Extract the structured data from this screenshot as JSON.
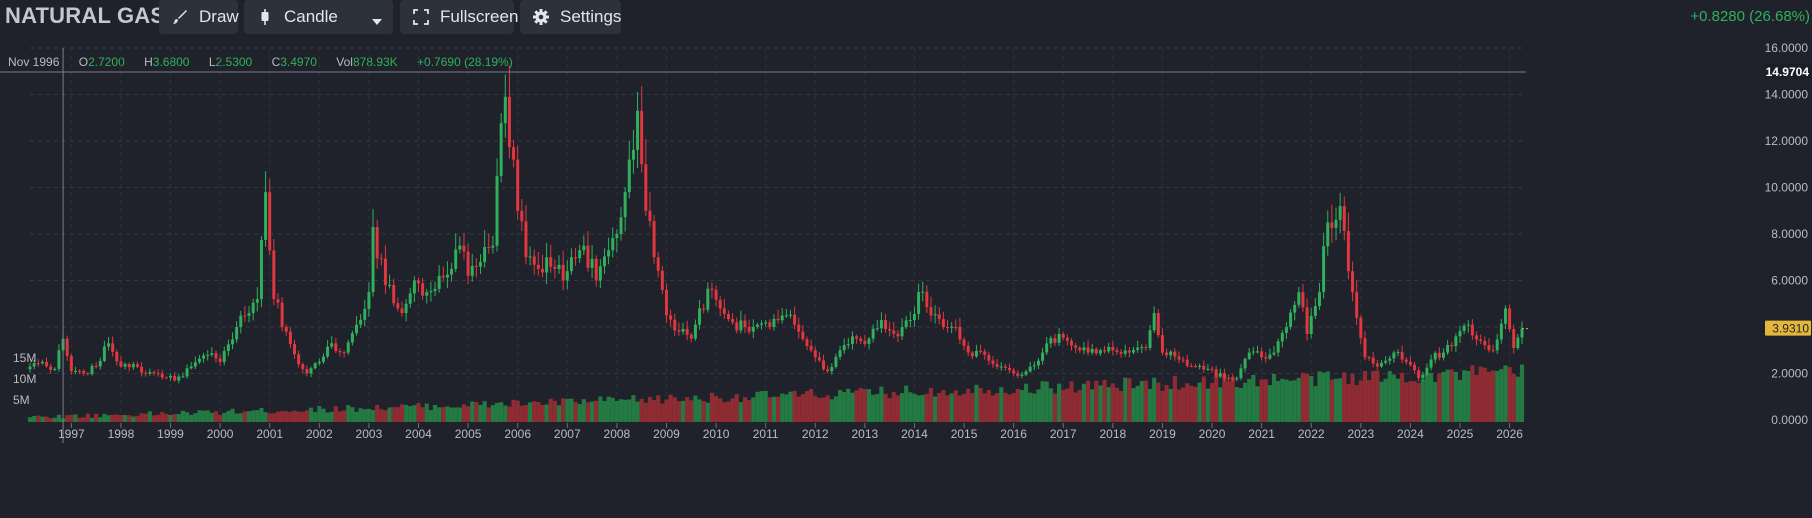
{
  "symbol": "NATURAL GAS",
  "toolbar": {
    "draw_label": "Draw",
    "candle_label": "Candle",
    "fullscreen_label": "Fullscreen",
    "settings_label": "Settings"
  },
  "change_label": "+0.8280 (26.68%)",
  "ohlc": {
    "date": "Nov 1996",
    "o_label": "O",
    "o_value": "2.7200",
    "h_label": "H",
    "h_value": "3.6800",
    "l_label": "L",
    "l_value": "2.5300",
    "c_label": "C",
    "c_value": "3.4970",
    "vol_label": "Vol",
    "vol_value": "878.93K",
    "change": "+0.7690 (28.19%)"
  },
  "colors": {
    "up": "#2fb15b",
    "down": "#e2373f",
    "vol_up": "#237a42",
    "vol_down": "#8f2c33",
    "background": "#1f222b",
    "last_price_bg": "#e4b73a"
  },
  "chart_data": {
    "type": "candlestick",
    "interval": "monthly",
    "price_axis": {
      "range": [
        0,
        16
      ],
      "ticks": [
        "0.0000",
        "2.0000",
        "4.0000",
        "6.0000",
        "8.0000",
        "10.0000",
        "12.0000",
        "14.0000",
        "16.0000"
      ]
    },
    "volume_axis": {
      "ticks": [
        "5M",
        "10M",
        "15M"
      ]
    },
    "x_axis": {
      "range": [
        "1996-03",
        "2026-04"
      ],
      "ticks": [
        "1997",
        "1998",
        "1999",
        "2000",
        "2001",
        "2002",
        "2003",
        "2004",
        "2005",
        "2006",
        "2007",
        "2008",
        "2009",
        "2010",
        "2011",
        "2012",
        "2013",
        "2014",
        "2015",
        "2016",
        "2017",
        "2018",
        "2019",
        "2020",
        "2021",
        "2022",
        "2023",
        "2024",
        "2025",
        "2026"
      ]
    },
    "crosshair_price": "14.9704",
    "last_price": "3.9310",
    "series_close": [
      [
        "1996-03",
        2.3
      ],
      [
        "1996-06",
        2.5
      ],
      [
        "1996-09",
        2.2
      ],
      [
        "1996-11",
        3.5
      ],
      [
        "1997-01",
        2.1
      ],
      [
        "1997-04",
        2.0
      ],
      [
        "1997-07",
        2.3
      ],
      [
        "1997-10",
        3.3
      ],
      [
        "1998-01",
        2.3
      ],
      [
        "1998-04",
        2.4
      ],
      [
        "1998-07",
        2.0
      ],
      [
        "1998-10",
        2.0
      ],
      [
        "1999-02",
        1.7
      ],
      [
        "1999-06",
        2.3
      ],
      [
        "1999-10",
        2.8
      ],
      [
        "2000-01",
        2.5
      ],
      [
        "2000-05",
        4.0
      ],
      [
        "2000-08",
        4.6
      ],
      [
        "2000-10",
        5.2
      ],
      [
        "2000-12",
        9.8
      ],
      [
        "2001-02",
        5.2
      ],
      [
        "2001-05",
        3.8
      ],
      [
        "2001-08",
        2.4
      ],
      [
        "2001-10",
        2.0
      ],
      [
        "2002-01",
        2.5
      ],
      [
        "2002-04",
        3.3
      ],
      [
        "2002-07",
        2.9
      ],
      [
        "2002-10",
        4.1
      ],
      [
        "2003-01",
        5.5
      ],
      [
        "2003-02",
        8.3
      ],
      [
        "2003-05",
        5.8
      ],
      [
        "2003-08",
        4.8
      ],
      [
        "2003-10",
        5.0
      ],
      [
        "2003-12",
        6.0
      ],
      [
        "2004-03",
        5.5
      ],
      [
        "2004-06",
        6.2
      ],
      [
        "2004-09",
        6.5
      ],
      [
        "2004-11",
        7.5
      ],
      [
        "2005-01",
        6.2
      ],
      [
        "2005-04",
        6.8
      ],
      [
        "2005-07",
        7.5
      ],
      [
        "2005-08",
        10.5
      ],
      [
        "2005-10",
        13.9
      ],
      [
        "2005-12",
        11.2
      ],
      [
        "2006-01",
        9.0
      ],
      [
        "2006-03",
        7.0
      ],
      [
        "2006-06",
        6.5
      ],
      [
        "2006-08",
        7.0
      ],
      [
        "2006-10",
        6.5
      ],
      [
        "2006-12",
        6.0
      ],
      [
        "2007-02",
        7.0
      ],
      [
        "2007-05",
        7.5
      ],
      [
        "2007-08",
        6.0
      ],
      [
        "2007-11",
        7.3
      ],
      [
        "2008-01",
        8.0
      ],
      [
        "2008-03",
        9.8
      ],
      [
        "2008-06",
        13.3
      ],
      [
        "2008-08",
        9.0
      ],
      [
        "2008-10",
        7.0
      ],
      [
        "2009-01",
        4.5
      ],
      [
        "2009-04",
        3.8
      ],
      [
        "2009-07",
        3.5
      ],
      [
        "2009-09",
        4.8
      ],
      [
        "2009-12",
        5.6
      ],
      [
        "2010-02",
        4.8
      ],
      [
        "2010-05",
        4.2
      ],
      [
        "2010-08",
        4.0
      ],
      [
        "2010-11",
        4.1
      ],
      [
        "2011-02",
        4.0
      ],
      [
        "2011-06",
        4.5
      ],
      [
        "2011-09",
        3.8
      ],
      [
        "2011-12",
        3.0
      ],
      [
        "2012-04",
        2.1
      ],
      [
        "2012-07",
        3.0
      ],
      [
        "2012-11",
        3.5
      ],
      [
        "2013-02",
        3.5
      ],
      [
        "2013-05",
        4.3
      ],
      [
        "2013-09",
        3.6
      ],
      [
        "2013-12",
        4.3
      ],
      [
        "2014-02",
        5.5
      ],
      [
        "2014-05",
        4.5
      ],
      [
        "2014-08",
        4.0
      ],
      [
        "2014-11",
        4.0
      ],
      [
        "2015-02",
        2.9
      ],
      [
        "2015-06",
        2.8
      ],
      [
        "2015-10",
        2.3
      ],
      [
        "2016-02",
        1.9
      ],
      [
        "2016-05",
        2.3
      ],
      [
        "2016-08",
        2.9
      ],
      [
        "2016-12",
        3.7
      ],
      [
        "2017-03",
        3.2
      ],
      [
        "2017-07",
        2.9
      ],
      [
        "2017-10",
        3.0
      ],
      [
        "2018-01",
        3.0
      ],
      [
        "2018-05",
        2.9
      ],
      [
        "2018-09",
        3.1
      ],
      [
        "2018-11",
        4.6
      ],
      [
        "2019-01",
        2.9
      ],
      [
        "2019-05",
        2.6
      ],
      [
        "2019-09",
        2.3
      ],
      [
        "2019-12",
        2.2
      ],
      [
        "2020-04",
        1.8
      ],
      [
        "2020-07",
        1.8
      ],
      [
        "2020-10",
        2.9
      ],
      [
        "2021-01",
        2.7
      ],
      [
        "2021-04",
        2.9
      ],
      [
        "2021-07",
        4.0
      ],
      [
        "2021-10",
        5.5
      ],
      [
        "2021-12",
        3.7
      ],
      [
        "2022-03",
        5.5
      ],
      [
        "2022-05",
        8.5
      ],
      [
        "2022-08",
        9.2
      ],
      [
        "2022-10",
        6.4
      ],
      [
        "2022-12",
        4.4
      ],
      [
        "2023-02",
        2.7
      ],
      [
        "2023-05",
        2.3
      ],
      [
        "2023-09",
        2.9
      ],
      [
        "2023-12",
        2.5
      ],
      [
        "2024-03",
        1.8
      ],
      [
        "2024-06",
        2.6
      ],
      [
        "2024-09",
        2.9
      ],
      [
        "2024-12",
        3.6
      ],
      [
        "2025-03",
        4.1
      ],
      [
        "2025-06",
        3.4
      ],
      [
        "2025-09",
        3.0
      ],
      [
        "2025-12",
        4.8
      ],
      [
        "2026-02",
        3.1
      ],
      [
        "2026-04",
        3.93
      ]
    ]
  }
}
